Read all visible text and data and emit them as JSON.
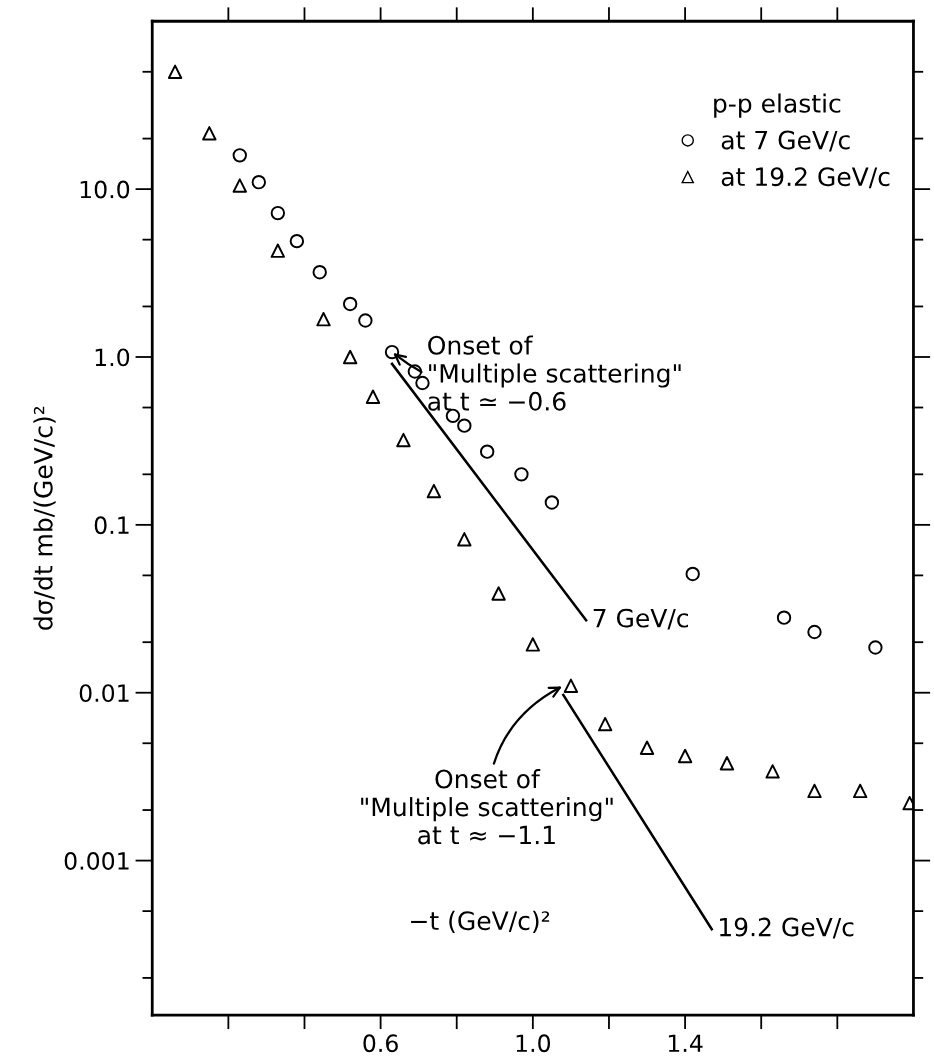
{
  "chart_data": {
    "type": "scatter",
    "xlabel": "−t (GeV/c)²",
    "ylabel": "dσ/dt mb/(GeV/c)²",
    "legend_title": "p-p elastic",
    "legend": "top right",
    "log": "y",
    "grid": false,
    "xlim": [
      0.0,
      2.0
    ],
    "ylim": [
      0.00012,
      100
    ],
    "xticks": [
      {
        "value": 0.2,
        "label": null
      },
      {
        "value": 0.4,
        "label": null
      },
      {
        "value": 0.6,
        "label": "0.6"
      },
      {
        "value": 0.8,
        "label": null
      },
      {
        "value": 1.0,
        "label": "1.0"
      },
      {
        "value": 1.2,
        "label": null
      },
      {
        "value": 1.4,
        "label": "1.4"
      },
      {
        "value": 1.6,
        "label": null
      },
      {
        "value": 1.8,
        "label": null
      }
    ],
    "yticks": [
      {
        "value": 50,
        "label": null
      },
      {
        "value": 20,
        "label": null
      },
      {
        "value": 10,
        "label": "10.0"
      },
      {
        "value": 5,
        "label": null
      },
      {
        "value": 2,
        "label": null
      },
      {
        "value": 1,
        "label": "1.0"
      },
      {
        "value": 0.5,
        "label": null
      },
      {
        "value": 0.2,
        "label": null
      },
      {
        "value": 0.1,
        "label": "0.1"
      },
      {
        "value": 0.05,
        "label": null
      },
      {
        "value": 0.02,
        "label": null
      },
      {
        "value": 0.01,
        "label": "0.01"
      },
      {
        "value": 0.005,
        "label": null
      },
      {
        "value": 0.002,
        "label": null
      },
      {
        "value": 0.001,
        "label": "0.001"
      },
      {
        "value": 0.0005,
        "label": null
      },
      {
        "value": 0.0002,
        "label": null
      }
    ],
    "series": [
      {
        "name": "at 7 GeV/c",
        "color": "#000000",
        "marker": "circle",
        "x": [
          0.23,
          0.28,
          0.33,
          0.38,
          0.44,
          0.52,
          0.56,
          0.63,
          0.69,
          0.71,
          0.79,
          0.82,
          0.88,
          0.97,
          1.05,
          1.42,
          1.66,
          1.74,
          1.9
        ],
        "values": [
          15.9,
          11.0,
          7.2,
          4.9,
          3.2,
          2.07,
          1.65,
          1.07,
          0.82,
          0.7,
          0.446,
          0.39,
          0.273,
          0.2,
          0.136,
          0.051,
          0.028,
          0.023,
          0.0186
        ]
      },
      {
        "name": "at 19.2 GeV/c",
        "color": "#000000",
        "marker": "triangle",
        "x": [
          0.06,
          0.15,
          0.23,
          0.33,
          0.45,
          0.52,
          0.58,
          0.66,
          0.74,
          0.82,
          0.91,
          1.0,
          1.1,
          1.19,
          1.3,
          1.4,
          1.51,
          1.63,
          1.74,
          1.86,
          1.99
        ],
        "values": [
          50,
          21.5,
          10.5,
          4.3,
          1.68,
          1.0,
          0.58,
          0.32,
          0.159,
          0.082,
          0.039,
          0.0194,
          0.011,
          0.0065,
          0.0047,
          0.0042,
          0.0038,
          0.0034,
          0.0026,
          0.0026,
          0.0022
        ]
      },
      {
        "type": "line",
        "color": "#000000",
        "marker": "none",
        "line_style": "solid",
        "x": [
          0.63,
          1.14
        ],
        "values": [
          0.91,
          0.027
        ]
      },
      {
        "type": "line",
        "color": "#000000",
        "marker": "none",
        "line_style": "solid",
        "x": [
          1.08,
          1.47
        ],
        "values": [
          0.0097,
          0.00039
        ]
      }
    ],
    "annotations": [
      {
        "text": "7 GeV/c",
        "x": 1.14,
        "y": 0.027
      },
      {
        "text": "19.2 GeV/c",
        "x": 1.47,
        "y": 0.00039
      },
      {
        "text": "Onset of\n\"Multiple scattering\"\nat t ≃ −0.6",
        "x": 0.63,
        "y": 1.07
      },
      {
        "text": "Onset of\n\"Multiple scattering\"\nat t ≈ −1.1",
        "x": 1.08,
        "y": 0.011
      }
    ]
  }
}
